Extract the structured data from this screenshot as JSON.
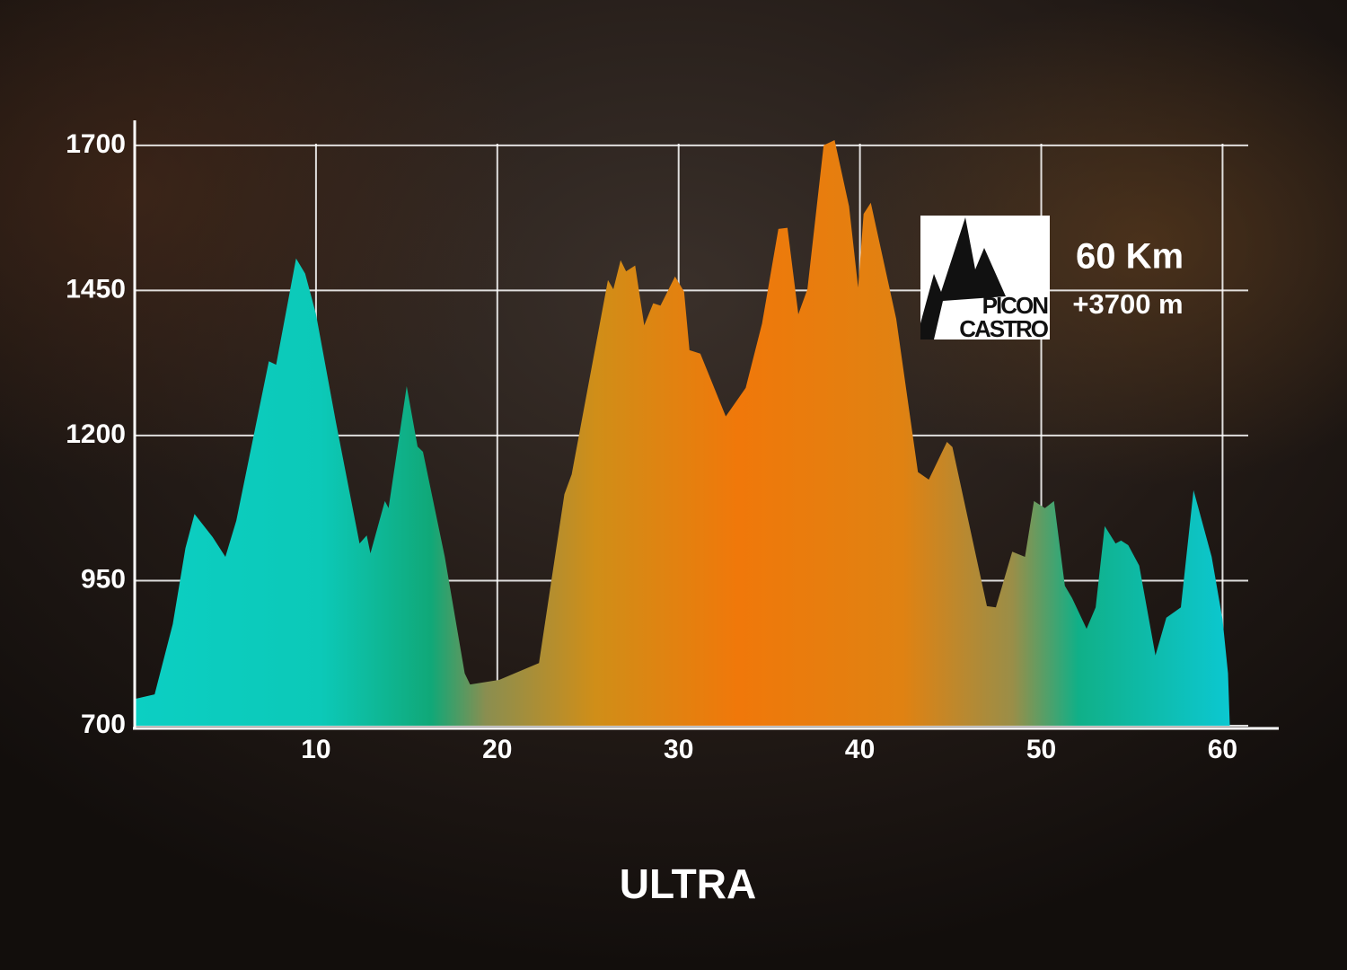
{
  "chart_data": {
    "type": "area",
    "title": "ULTRA",
    "annotations": [
      "60 Km",
      "+3700 m"
    ],
    "logo": [
      "PICON",
      "CASTRO"
    ],
    "x": [
      0,
      1.1,
      2.1,
      2.8,
      3.3,
      4.3,
      5.0,
      5.6,
      7.4,
      7.8,
      8.9,
      9.4,
      10.0,
      11.1,
      12.4,
      12.8,
      13.0,
      13.8,
      14.0,
      15.0,
      15.6,
      15.9,
      17.1,
      18.2,
      18.5,
      20.1,
      22.3,
      23.7,
      24.1,
      26.1,
      26.4,
      26.8,
      27.1,
      27.6,
      28.1,
      28.6,
      29.0,
      29.8,
      30.3,
      30.6,
      31.2,
      32.6,
      33.7,
      34.6,
      35.5,
      36.0,
      36.6,
      37.1,
      38.0,
      38.6,
      39.4,
      39.9,
      40.2,
      40.6,
      42.0,
      43.2,
      43.8,
      44.8,
      45.1,
      47.0,
      47.5,
      48.4,
      49.1,
      49.6,
      50.2,
      50.7,
      51.3,
      51.7,
      52.5,
      53.0,
      53.5,
      54.1,
      54.4,
      54.8,
      55.4,
      56.3,
      56.9,
      57.7,
      58.4,
      59.4,
      60.0,
      60.3,
      60.4
    ],
    "values": [
      746,
      754,
      875,
      1006,
      1065,
      1025,
      991,
      1053,
      1328,
      1322,
      1505,
      1479,
      1409,
      1223,
      1014,
      1028,
      997,
      1087,
      1075,
      1285,
      1181,
      1172,
      991,
      790,
      771,
      779,
      808,
      1099,
      1133,
      1468,
      1452,
      1502,
      1483,
      1493,
      1390,
      1428,
      1424,
      1474,
      1448,
      1347,
      1341,
      1233,
      1282,
      1393,
      1556,
      1558,
      1409,
      1452,
      1700,
      1709,
      1595,
      1455,
      1582,
      1601,
      1401,
      1137,
      1124,
      1189,
      1180,
      906,
      904,
      1000,
      991,
      1087,
      1075,
      1087,
      941,
      920,
      867,
      904,
      1044,
      1014,
      1019,
      1011,
      976,
      821,
      886,
      904,
      1106,
      991,
      883,
      790,
      700
    ],
    "xlim": [
      0,
      63
    ],
    "xticks": [
      10,
      20,
      30,
      40,
      50,
      60
    ],
    "ylim": [
      700,
      1740
    ],
    "yticks": [
      700,
      950,
      1200,
      1450,
      1700
    ],
    "grid": true
  }
}
